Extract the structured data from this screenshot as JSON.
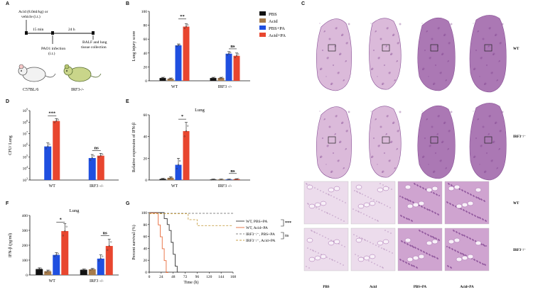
{
  "colors": {
    "pbs": "#111111",
    "acid": "#a77b4b",
    "pbs_pa": "#1f4fe0",
    "acid_pa": "#e8462f",
    "he_pink": "#d8b3d6",
    "he_purple": "#a36aac",
    "he_dark": "#7a3d8a"
  },
  "panel_labels": {
    "a": "A",
    "b": "B",
    "c": "C",
    "d": "D",
    "e": "E",
    "f": "F",
    "g": "G"
  },
  "panel_a": {
    "line1": "Acid (8.0ml/kg) or",
    "line2": "vehicle (i.t.)",
    "time1": "15 min",
    "time2": "24 h",
    "infection1": "PAO1 infection",
    "infection2": "(i.t.)",
    "collection1": "BALF and lung",
    "collection2": "tissue collection",
    "mouse1": "C57BL/6",
    "mouse2": "IRF3-/-"
  },
  "legend_b": [
    "PBS",
    "Acid",
    "PBS+PA",
    "Acid+PA"
  ],
  "chart_data": [
    {
      "id": "B",
      "type": "bar",
      "ylabel": "Lung injury score",
      "ylim": [
        0,
        100
      ],
      "yticks": [
        0,
        20,
        40,
        60,
        80,
        100
      ],
      "categories": [
        "WT",
        "IRF3 -/-"
      ],
      "series": [
        {
          "name": "PBS",
          "values": [
            4,
            4
          ]
        },
        {
          "name": "Acid",
          "values": [
            3,
            4
          ]
        },
        {
          "name": "PBS+PA",
          "values": [
            51,
            39
          ]
        },
        {
          "name": "Acid+PA",
          "values": [
            78,
            36
          ]
        }
      ],
      "errors": [
        [
          1,
          1
        ],
        [
          1,
          1
        ],
        [
          2,
          3
        ],
        [
          4,
          4
        ]
      ],
      "significance": [
        {
          "category": 0,
          "label": "**",
          "y": 89
        },
        {
          "category": 1,
          "label": "ns",
          "y": 46
        }
      ]
    },
    {
      "id": "D",
      "type": "bar",
      "ylabel": "CFU/ Lung",
      "log": true,
      "ytick_labels": [
        "10^3",
        "10^4",
        "10^5",
        "10^6",
        "10^7",
        "10^8",
        "10^9"
      ],
      "ylim_exp": [
        3,
        9
      ],
      "categories": [
        "WT",
        "IRF3 -/-"
      ],
      "series": [
        {
          "name": "PBS+PA",
          "values": [
            5.9,
            4.9
          ]
        },
        {
          "name": "Acid+PA",
          "values": [
            8.1,
            5.1
          ]
        }
      ],
      "errors": [
        [
          0.3,
          0.3
        ],
        [
          0.2,
          0.2
        ]
      ],
      "significance": [
        {
          "category": 0,
          "label": "***",
          "y": 8.55
        },
        {
          "category": 1,
          "label": "ns",
          "y": 5.55
        }
      ]
    },
    {
      "id": "E",
      "type": "bar",
      "title": "Lung",
      "ylabel": "Relative expression of IFN-β",
      "ylim": [
        0,
        60
      ],
      "yticks": [
        0,
        20,
        40,
        60
      ],
      "categories": [
        "WT",
        "IRF3 -/-"
      ],
      "series": [
        {
          "name": "PBS",
          "values": [
            1,
            0.5
          ]
        },
        {
          "name": "Acid",
          "values": [
            2,
            0.5
          ]
        },
        {
          "name": "PBS+PA",
          "values": [
            14,
            0.5
          ]
        },
        {
          "name": "Acid+PA",
          "values": [
            45,
            0.8
          ]
        }
      ],
      "errors": [
        [
          0.5,
          0.3
        ],
        [
          1,
          0.3
        ],
        [
          6,
          0.3
        ],
        [
          8,
          0.4
        ]
      ],
      "significance": [
        {
          "category": 0,
          "label": "*",
          "y": 56
        },
        {
          "category": 1,
          "label": "ns",
          "y": 6
        }
      ]
    },
    {
      "id": "F",
      "type": "bar",
      "title": "Lung",
      "ylabel": "IFN-β (pg/ml)",
      "ylim": [
        0,
        400
      ],
      "yticks": [
        0,
        100,
        200,
        300,
        400
      ],
      "categories": [
        "WT",
        "IRF3 -/-"
      ],
      "series": [
        {
          "name": "PBS",
          "values": [
            40,
            35
          ]
        },
        {
          "name": "Acid",
          "values": [
            25,
            38
          ]
        },
        {
          "name": "PBS+PA",
          "values": [
            135,
            110
          ]
        },
        {
          "name": "Acid+PA",
          "values": [
            295,
            195
          ]
        }
      ],
      "errors": [
        [
          8,
          5
        ],
        [
          8,
          6
        ],
        [
          15,
          25
        ],
        [
          50,
          45
        ]
      ],
      "significance": [
        {
          "category": 0,
          "label": "*",
          "y": 355
        },
        {
          "category": 1,
          "label": "ns",
          "y": 265
        }
      ]
    },
    {
      "id": "G",
      "type": "line",
      "xlabel": "Time (h)",
      "ylabel": "Percent survival (%)",
      "xlim": [
        0,
        168
      ],
      "ylim": [
        0,
        100
      ],
      "xticks": [
        0,
        24,
        48,
        72,
        96,
        120,
        144,
        168
      ],
      "yticks": [
        0,
        20,
        40,
        60,
        80,
        100
      ],
      "series": [
        {
          "name": "WT, PBS+PA",
          "color": "#333333",
          "dash": "",
          "points": [
            [
              0,
              100
            ],
            [
              30,
              100
            ],
            [
              30,
              90
            ],
            [
              36,
              90
            ],
            [
              36,
              80
            ],
            [
              40,
              80
            ],
            [
              40,
              70
            ],
            [
              44,
              70
            ],
            [
              44,
              50
            ],
            [
              48,
              50
            ],
            [
              48,
              30
            ],
            [
              52,
              30
            ],
            [
              52,
              10
            ],
            [
              56,
              10
            ],
            [
              56,
              0
            ],
            [
              60,
              0
            ]
          ]
        },
        {
          "name": "WT, Acid+PA",
          "color": "#e86a3a",
          "dash": "",
          "points": [
            [
              0,
              100
            ],
            [
              18,
              100
            ],
            [
              18,
              80
            ],
            [
              22,
              80
            ],
            [
              22,
              60
            ],
            [
              26,
              60
            ],
            [
              26,
              40
            ],
            [
              30,
              40
            ],
            [
              30,
              20
            ],
            [
              34,
              20
            ],
            [
              34,
              0
            ],
            [
              38,
              0
            ]
          ]
        },
        {
          "name": "IRF3 -/-, PBS+PA",
          "color": "#888888",
          "dash": "3,2",
          "points": [
            [
              0,
              100
            ],
            [
              168,
              100
            ]
          ]
        },
        {
          "name": "IRF3 -/-, Acid+PA",
          "color": "#c9a24a",
          "dash": "3,2",
          "points": [
            [
              0,
              100
            ],
            [
              78,
              100
            ],
            [
              78,
              90
            ],
            [
              96,
              90
            ],
            [
              96,
              80
            ],
            [
              168,
              80
            ]
          ]
        }
      ],
      "legend_labels": [
        "WT, PBS+PA",
        "WT, Acid+PA",
        "IRF3⁻/⁻, PBS+PA",
        "IRF3⁻/⁻, Acid+PA"
      ],
      "significance": [
        {
          "label": "***"
        },
        {
          "label": "ns"
        }
      ]
    }
  ],
  "panel_c": {
    "row_labels": [
      "WT",
      "IRF3⁻/⁻",
      "WT",
      "IRF3⁻/⁻"
    ],
    "col_labels": [
      "PBS",
      "Acid",
      "PBS+PA",
      "Acid+PA"
    ]
  }
}
